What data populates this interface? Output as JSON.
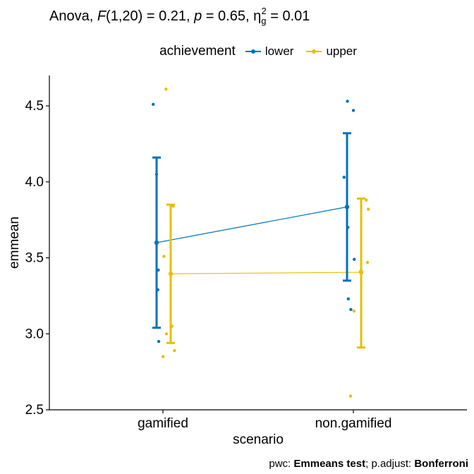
{
  "title": {
    "parts": [
      {
        "text": "Anova, ",
        "style": "normal"
      },
      {
        "text": "F",
        "style": "italic"
      },
      {
        "text": "(1,20) = 0.21, ",
        "style": "normal"
      },
      {
        "text": "p",
        "style": "italic"
      },
      {
        "text": " = 0.65, η",
        "style": "normal"
      },
      {
        "text": "g",
        "style": "sub"
      },
      {
        "text": "2",
        "style": "sup"
      },
      {
        "text": " = 0.01",
        "style": "normal"
      }
    ]
  },
  "footer": {
    "prefix": "pwc: ",
    "method": "Emmeans test",
    "middle": "; p.adjust: ",
    "adjust": "Bonferroni"
  },
  "chart_data": {
    "type": "line",
    "xlabel": "scenario",
    "ylabel": "emmean",
    "categories": [
      "gamified",
      "non.gamified"
    ],
    "ylim": [
      2.5,
      4.7
    ],
    "yticks": [
      "2.5",
      "3.0",
      "3.5",
      "4.0",
      "4.5"
    ],
    "grid": false,
    "legend": {
      "title": "achievement",
      "placement": "top"
    },
    "series": [
      {
        "name": "lower",
        "color": "#0072BD",
        "means": [
          3.6,
          3.835
        ],
        "ci_low": [
          3.04,
          3.35
        ],
        "ci_high": [
          4.16,
          4.32
        ],
        "points": [
          [
            4.51,
            4.05,
            3.42,
            3.29,
            2.95
          ],
          [
            4.53,
            4.47,
            4.03,
            3.7,
            3.49,
            3.23,
            3.16
          ]
        ]
      },
      {
        "name": "upper",
        "color": "#E8BE00",
        "means": [
          3.395,
          3.405
        ],
        "ci_low": [
          2.94,
          2.91
        ],
        "ci_high": [
          3.85,
          3.89
        ],
        "points": [
          [
            4.61,
            3.84,
            3.51,
            3.05,
            3.0,
            2.89,
            2.85
          ],
          [
            3.88,
            3.82,
            3.47,
            3.41,
            3.15,
            2.59
          ]
        ]
      }
    ]
  }
}
